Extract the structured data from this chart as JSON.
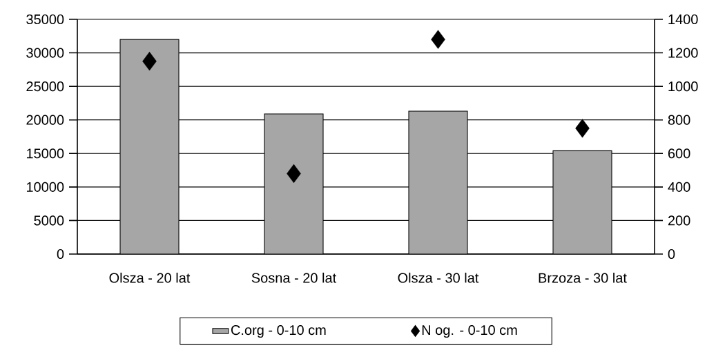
{
  "chart_data": {
    "type": "bar",
    "categories": [
      "Olsza - 20 lat",
      "Sosna - 20 lat",
      "Olsza - 30 lat",
      "Brzoza - 30 lat"
    ],
    "series": [
      {
        "name": "C.org - 0-10 cm",
        "color": "#a6a6a6",
        "values": [
          32000,
          20900,
          21300,
          15400
        ]
      },
      {
        "name": "N og. - 0-10 cm",
        "type": "scatter",
        "axis": "y2",
        "marker": "diamond",
        "color": "#000000",
        "values": [
          1150,
          480,
          1280,
          750
        ]
      }
    ],
    "ylim": [
      0,
      35000
    ],
    "yticks": [
      0,
      5000,
      10000,
      15000,
      20000,
      25000,
      30000,
      35000
    ],
    "y2lim": [
      0,
      1400
    ],
    "y2ticks": [
      0,
      200,
      400,
      600,
      800,
      1000,
      1200,
      1400
    ],
    "grid": "y",
    "legend": "bottom"
  }
}
